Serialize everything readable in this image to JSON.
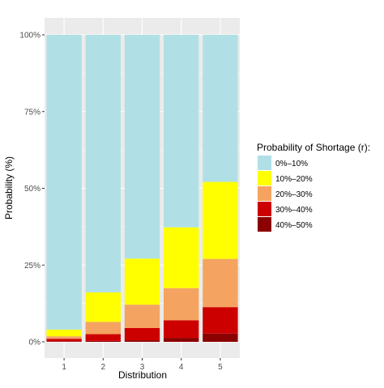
{
  "chart_data": {
    "type": "bar",
    "stacked": true,
    "percent_scale": true,
    "xlabel": "Distribution",
    "ylabel": "Probability (%)",
    "categories": [
      "1",
      "2",
      "3",
      "4",
      "5"
    ],
    "yticks": [
      0,
      25,
      50,
      75,
      100
    ],
    "ytick_labels": [
      "0%",
      "25%",
      "50%",
      "75%",
      "100%"
    ],
    "ylim": [
      0,
      100
    ],
    "grid": true,
    "legend": {
      "title": "Probability of Shortage (r):",
      "position": "right"
    },
    "series": [
      {
        "name": "40%–50%",
        "color": "#8b0000",
        "values": [
          0.2,
          0.3,
          0.5,
          1.3,
          2.7
        ]
      },
      {
        "name": "30%–40%",
        "color": "#cd0000",
        "values": [
          0.8,
          2.2,
          4.0,
          5.7,
          8.6
        ]
      },
      {
        "name": "20%–30%",
        "color": "#f4a460",
        "values": [
          0.8,
          4.0,
          7.6,
          10.5,
          15.7
        ]
      },
      {
        "name": "10%–20%",
        "color": "#ffff00",
        "values": [
          2.2,
          9.6,
          15.0,
          19.8,
          25.1
        ]
      },
      {
        "name": "0%–10%",
        "color": "#b0e0e6",
        "values": [
          96.0,
          83.9,
          72.9,
          62.7,
          47.9
        ]
      }
    ],
    "legend_order": [
      "0%–10%",
      "10%–20%",
      "20%–30%",
      "30%–40%",
      "40%–50%"
    ]
  }
}
